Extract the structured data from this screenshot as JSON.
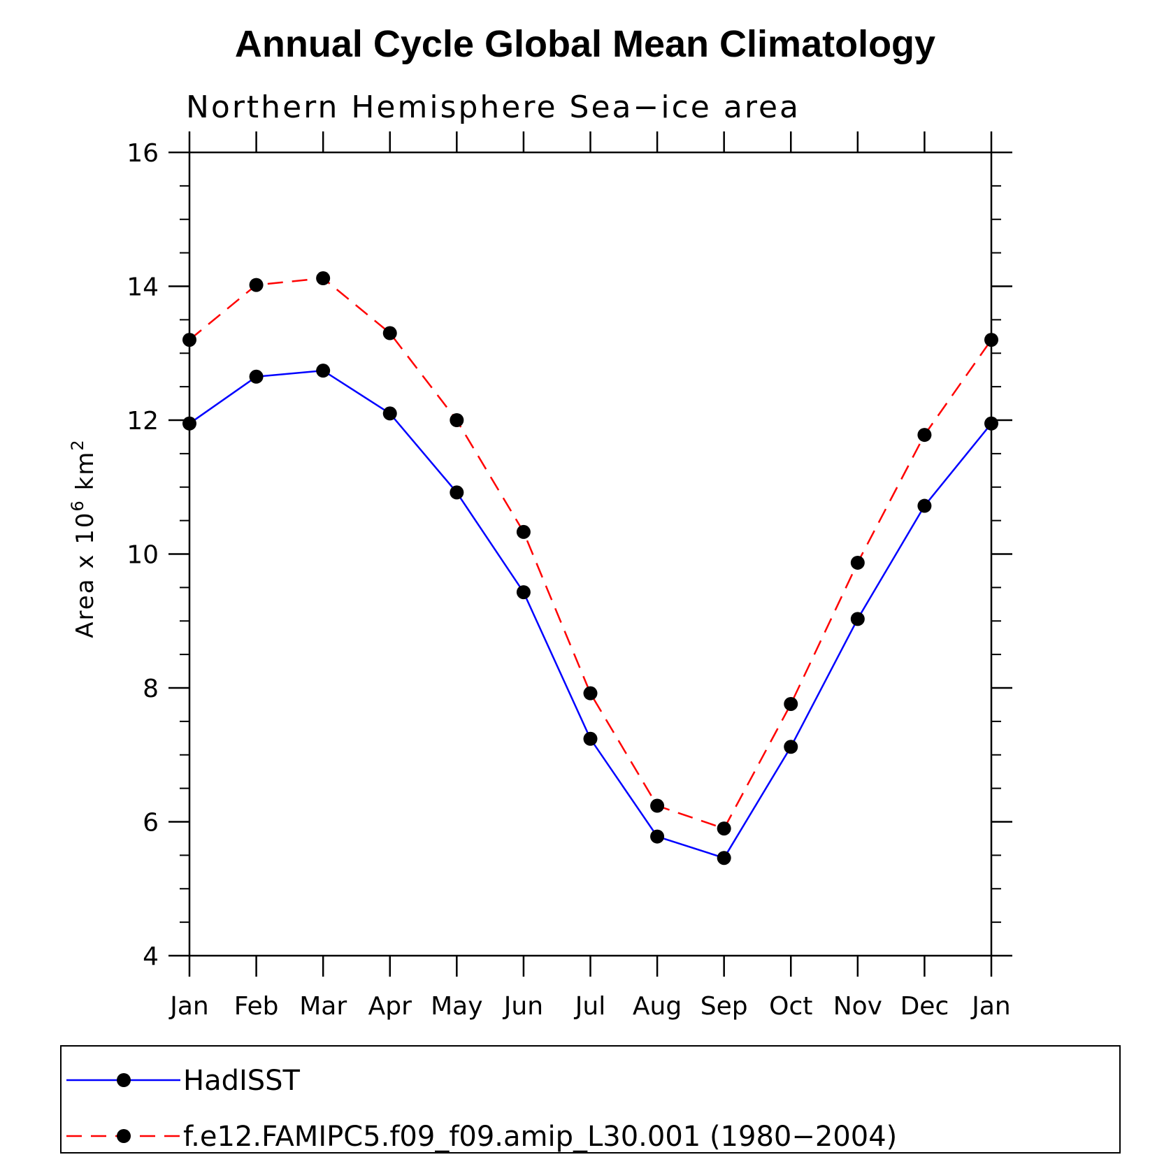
{
  "chart_data": {
    "type": "line",
    "title": "Annual Cycle Global Mean Climatology",
    "subtitle": "Northern Hemisphere Sea−ice area",
    "ylabel": {
      "text": "Area x 10",
      "sup": "6",
      "unit": " km",
      "unit_sup": "2"
    },
    "xlabel": "",
    "categories": [
      "Jan",
      "Feb",
      "Mar",
      "Apr",
      "May",
      "Jun",
      "Jul",
      "Aug",
      "Sep",
      "Oct",
      "Nov",
      "Dec",
      "Jan"
    ],
    "ylim": [
      4,
      16
    ],
    "yticks": [
      4,
      6,
      8,
      10,
      12,
      14,
      16
    ],
    "y_minor_step": 0.5,
    "grid": false,
    "legend_position": "bottom",
    "series": [
      {
        "name": "HadISST",
        "color": "#0000ff",
        "dash": "solid",
        "marker": "filled-circle",
        "values": [
          11.95,
          12.65,
          12.74,
          12.1,
          10.92,
          9.43,
          7.24,
          5.78,
          5.46,
          7.12,
          9.03,
          10.72,
          11.95
        ]
      },
      {
        "name": "f.e12.FAMIPC5.f09_f09.amip_L30.001 (1980−2004)",
        "color": "#ff0000",
        "dash": "dashed",
        "marker": "filled-circle",
        "values": [
          13.2,
          14.02,
          14.12,
          13.3,
          12.0,
          10.33,
          7.92,
          6.24,
          5.9,
          7.76,
          9.87,
          11.78,
          13.2
        ]
      }
    ]
  }
}
